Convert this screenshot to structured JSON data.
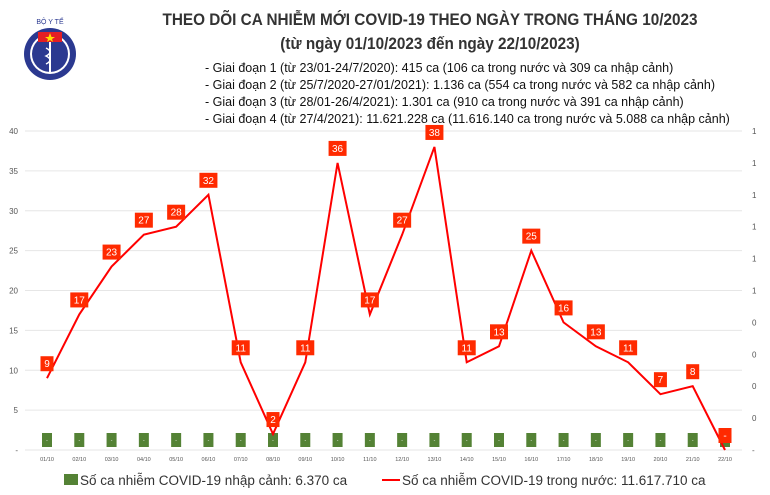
{
  "header": {
    "title": "THEO DÕI CA NHIỄM MỚI COVID-19 THEO NGÀY TRONG THÁNG 10/2023",
    "subtitle": "(từ ngày 01/10/2023 đến ngày 22/10/2023)",
    "logo_text": "BỘ Y TẾ - MINISTRY OF HEALTH",
    "notes": [
      "- Giai đoạn 1 (từ 23/01-24/7/2020): 415 ca (106 ca trong nước và 309 ca nhập cảnh)",
      "- Giai đoạn 2 (từ 25/7/2020-27/01/2021): 1.136 ca (554 ca trong nước và 582 ca nhập cảnh)",
      "- Giai đoạn 3 (từ 28/01-26/4/2021): 1.301 ca (910 ca trong nước và 391 ca nhập cảnh)",
      "- Giai đoạn 4 (từ 27/4/2021): 11.621.228 ca (11.616.140 ca trong nước và 5.088 ca nhập cảnh)"
    ]
  },
  "chart_data": {
    "type": "bar+line",
    "categories": [
      "01/10",
      "02/10",
      "03/10",
      "04/10",
      "05/10",
      "06/10",
      "07/10",
      "08/10",
      "09/10",
      "10/10",
      "11/10",
      "12/10",
      "13/10",
      "14/10",
      "15/10",
      "16/10",
      "17/10",
      "18/10",
      "19/10",
      "20/10",
      "21/10",
      "22/10"
    ],
    "series": [
      {
        "name": "Số ca nhiễm COVID-19 nhập cảnh: 6.370 ca",
        "type": "bar",
        "axis": "right",
        "color": "#548235",
        "values": [
          0,
          0,
          0,
          0,
          0,
          0,
          0,
          0,
          0,
          0,
          0,
          0,
          0,
          0,
          0,
          0,
          0,
          0,
          0,
          0,
          0,
          0
        ],
        "labels": [
          "-",
          "-",
          "-",
          "-",
          "-",
          "-",
          "-",
          "-",
          "-",
          "-",
          "-",
          "-",
          "-",
          "-",
          "-",
          "-",
          "-",
          "-",
          "-",
          "-",
          "-",
          "-"
        ]
      },
      {
        "name": "Số ca nhiễm COVID-19 trong nước: 11.617.710 ca",
        "type": "line",
        "axis": "left",
        "color": "#ff0000",
        "values": [
          9,
          17,
          23,
          27,
          28,
          32,
          11,
          2,
          11,
          36,
          17,
          27,
          38,
          11,
          13,
          25,
          16,
          13,
          11,
          7,
          8,
          0
        ],
        "labels": [
          "9",
          "17",
          "23",
          "27",
          "28",
          "32",
          "11",
          "2",
          "11",
          "36",
          "17",
          "27",
          "38",
          "11",
          "13",
          "25",
          "16",
          "13",
          "11",
          "7",
          "8",
          "-"
        ]
      }
    ],
    "yaxis_left": {
      "range": [
        0,
        40
      ],
      "ticks": [
        "-",
        "5",
        "10",
        "15",
        "20",
        "25",
        "30",
        "35",
        "40"
      ]
    },
    "yaxis_right": {
      "ticks": [
        "-",
        "0",
        "0",
        "0",
        "0",
        "1",
        "1",
        "1",
        "1",
        "1",
        "1"
      ]
    },
    "grid": true,
    "legend": "bottom"
  }
}
